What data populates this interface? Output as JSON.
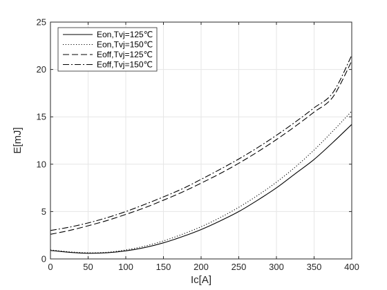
{
  "chart_data": {
    "type": "line",
    "title": "",
    "xlabel": "Ic[A]",
    "ylabel": "E[mJ]",
    "xlim": [
      0,
      400
    ],
    "ylim": [
      0,
      25
    ],
    "xticks": [
      0,
      50,
      100,
      150,
      200,
      250,
      300,
      350,
      400
    ],
    "yticks": [
      0,
      5,
      10,
      15,
      20,
      25
    ],
    "grid": true,
    "legend_position": "top-left",
    "x": [
      0,
      25,
      50,
      75,
      100,
      125,
      150,
      175,
      200,
      225,
      250,
      275,
      300,
      325,
      350,
      375,
      400
    ],
    "series": [
      {
        "name": "Eon,Tvj=125℃",
        "style": "solid",
        "color": "#000000",
        "values": [
          0.9,
          0.7,
          0.6,
          0.65,
          0.85,
          1.2,
          1.7,
          2.35,
          3.1,
          4.0,
          5.0,
          6.2,
          7.5,
          9.0,
          10.5,
          12.3,
          14.2
        ]
      },
      {
        "name": "Eon,Tvj=150℃",
        "style": "dotted",
        "color": "#000000",
        "values": [
          0.95,
          0.75,
          0.65,
          0.7,
          0.95,
          1.35,
          1.9,
          2.6,
          3.4,
          4.35,
          5.45,
          6.7,
          8.1,
          9.7,
          11.5,
          13.5,
          15.6
        ]
      },
      {
        "name": "Eoff,Tvj=125℃",
        "style": "dashed",
        "color": "#000000",
        "values": [
          2.6,
          3.0,
          3.5,
          4.05,
          4.7,
          5.4,
          6.2,
          7.05,
          8.0,
          9.0,
          10.1,
          11.3,
          12.6,
          14.0,
          15.5,
          17.1,
          20.9
        ]
      },
      {
        "name": "Eoff,Tvj=150℃",
        "style": "dashdot",
        "color": "#000000",
        "values": [
          3.0,
          3.35,
          3.8,
          4.35,
          5.0,
          5.75,
          6.55,
          7.4,
          8.4,
          9.45,
          10.55,
          11.75,
          13.05,
          14.45,
          15.95,
          17.55,
          21.5
        ]
      }
    ]
  }
}
